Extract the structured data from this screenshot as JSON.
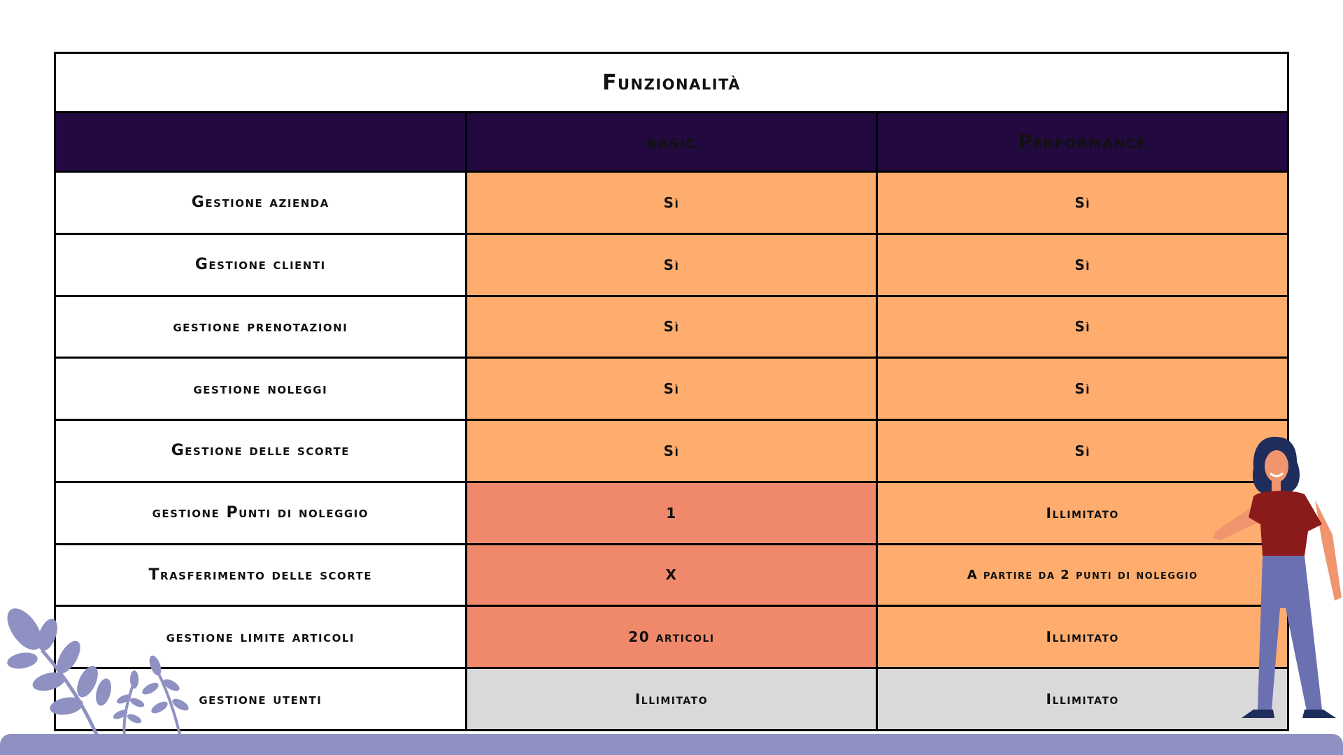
{
  "table": {
    "title": "Funzionalità",
    "columns": [
      "",
      "basic",
      "Performance"
    ],
    "rows": [
      {
        "feature": "Gestione azienda",
        "basic": "Sì",
        "performance": "Sì"
      },
      {
        "feature": "Gestione clienti",
        "basic": "Sì",
        "performance": "Sì"
      },
      {
        "feature": "gestione prenotazioni",
        "basic": "Sì",
        "performance": "Sì"
      },
      {
        "feature": "gestione noleggi",
        "basic": "Sì",
        "performance": "Sì"
      },
      {
        "feature": "Gestione delle scorte",
        "basic": "Sì",
        "performance": "Sì"
      },
      {
        "feature": "gestione Punti di noleggio",
        "basic": "1",
        "performance": "Illimitato"
      },
      {
        "feature": "Trasferimento delle scorte",
        "basic": "X",
        "performance": "A partire da 2 punti di noleggio"
      },
      {
        "feature": "gestione limite articoli",
        "basic": "20 articoli",
        "performance": "Illimitato"
      },
      {
        "feature": "gestione utenti",
        "basic": "Illimitato",
        "performance": "Illimitato"
      }
    ]
  },
  "colors": {
    "header_bg": "#22093f",
    "orange": "#ffad6e",
    "salmon": "#f0896c",
    "gray": "#d9d9d9",
    "ground": "#8e91c1"
  },
  "decorations": {
    "plants_icon": "plant-leaves-icon",
    "person_icon": "woman-presenting-icon"
  }
}
